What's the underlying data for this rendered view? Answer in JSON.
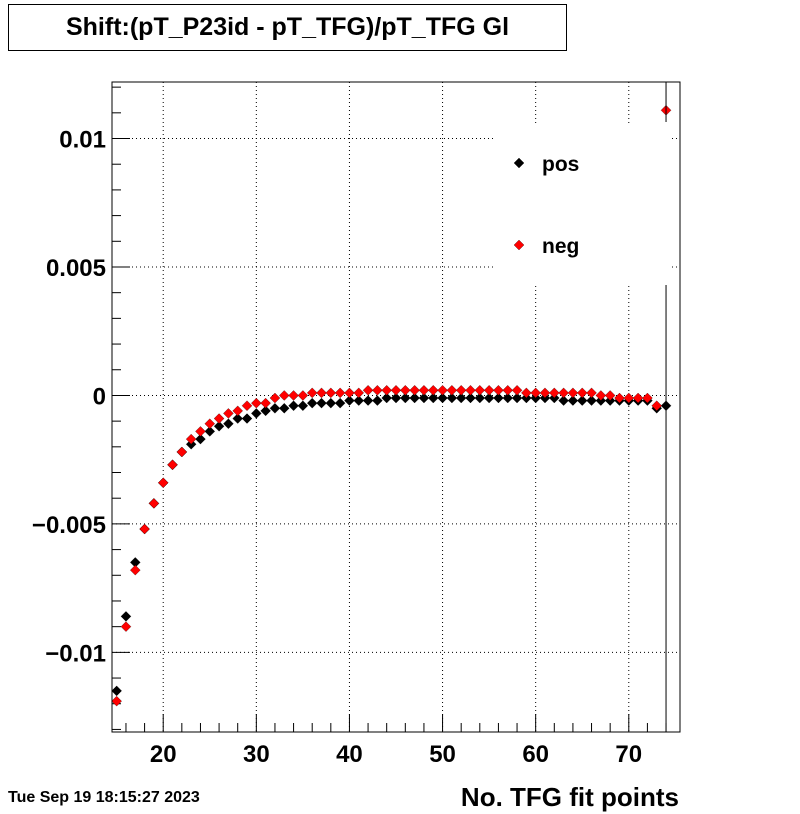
{
  "title": "Shift:(pT_P23id - pT_TFG)/pT_TFG Gl",
  "timestamp": "Tue Sep 19 18:15:27 2023",
  "chart_data": {
    "type": "scatter",
    "title": "Shift:(pT_P23id - pT_TFG)/pT_TFG Gl",
    "xlabel": "No. TFG fit points",
    "ylabel": "",
    "xlim": [
      14.5,
      75.5
    ],
    "ylim": [
      -0.0131,
      0.0122
    ],
    "x_ticks": [
      20,
      30,
      40,
      50,
      60,
      70
    ],
    "y_ticks": [
      -0.01,
      -0.005,
      0,
      0.005,
      0.01
    ],
    "y_tick_labels": [
      "−0.01",
      "−0.005",
      "0",
      "0.005",
      "0.01"
    ],
    "grid": true,
    "legend_position": "top-right",
    "series": [
      {
        "name": "pos",
        "color": "#000000",
        "x": [
          15,
          16,
          17,
          18,
          19,
          20,
          21,
          22,
          23,
          24,
          25,
          26,
          27,
          28,
          29,
          30,
          31,
          32,
          33,
          34,
          35,
          36,
          37,
          38,
          39,
          40,
          41,
          42,
          43,
          44,
          45,
          46,
          47,
          48,
          49,
          50,
          51,
          52,
          53,
          54,
          55,
          56,
          57,
          58,
          59,
          60,
          61,
          62,
          63,
          64,
          65,
          66,
          67,
          68,
          69,
          70,
          71,
          72,
          73,
          74
        ],
        "y": [
          -0.0115,
          -0.0086,
          -0.0065,
          -0.0052,
          -0.0042,
          -0.0034,
          -0.0027,
          -0.0022,
          -0.0019,
          -0.0017,
          -0.0014,
          -0.0012,
          -0.0011,
          -0.0009,
          -0.0009,
          -0.0007,
          -0.0006,
          -0.0005,
          -0.0005,
          -0.0004,
          -0.0004,
          -0.0003,
          -0.0003,
          -0.0003,
          -0.0003,
          -0.0002,
          -0.0002,
          -0.0002,
          -0.0002,
          -0.0001,
          -0.0001,
          -0.0001,
          -0.0001,
          -0.0001,
          -0.0001,
          -0.0001,
          -0.0001,
          -0.0001,
          -0.0001,
          -0.0001,
          -0.0001,
          -0.0001,
          -0.0001,
          -0.0001,
          -0.0001,
          -0.0001,
          -0.0001,
          -0.0001,
          -0.0002,
          -0.0002,
          -0.0002,
          -0.0002,
          -0.0002,
          -0.0002,
          -0.0002,
          -0.0002,
          -0.0002,
          -0.0002,
          -0.0005,
          -0.0004
        ]
      },
      {
        "name": "neg",
        "color": "#ff0000",
        "x": [
          15,
          16,
          17,
          18,
          19,
          20,
          21,
          22,
          23,
          24,
          25,
          26,
          27,
          28,
          29,
          30,
          31,
          32,
          33,
          34,
          35,
          36,
          37,
          38,
          39,
          40,
          41,
          42,
          43,
          44,
          45,
          46,
          47,
          48,
          49,
          50,
          51,
          52,
          53,
          54,
          55,
          56,
          57,
          58,
          59,
          60,
          61,
          62,
          63,
          64,
          65,
          66,
          67,
          68,
          69,
          70,
          71,
          72,
          73,
          74
        ],
        "y": [
          -0.0119,
          -0.009,
          -0.0068,
          -0.0052,
          -0.0042,
          -0.0034,
          -0.0027,
          -0.0022,
          -0.0017,
          -0.0014,
          -0.0011,
          -0.0009,
          -0.0007,
          -0.0006,
          -0.0004,
          -0.0003,
          -0.0003,
          -0.0001,
          0.0,
          0.0,
          0.0,
          0.0001,
          0.0001,
          0.0001,
          0.0001,
          0.0001,
          0.0001,
          0.0002,
          0.0002,
          0.0002,
          0.0002,
          0.0002,
          0.0002,
          0.0002,
          0.0002,
          0.0002,
          0.0002,
          0.0002,
          0.0002,
          0.0002,
          0.0002,
          0.0002,
          0.0002,
          0.0002,
          0.0001,
          0.0001,
          0.0001,
          0.0001,
          0.0001,
          0.0001,
          0.0001,
          0.0001,
          0.0,
          0.0,
          -0.0001,
          -0.0001,
          -0.0001,
          -0.0001,
          -0.0004,
          0.0111
        ]
      }
    ]
  }
}
